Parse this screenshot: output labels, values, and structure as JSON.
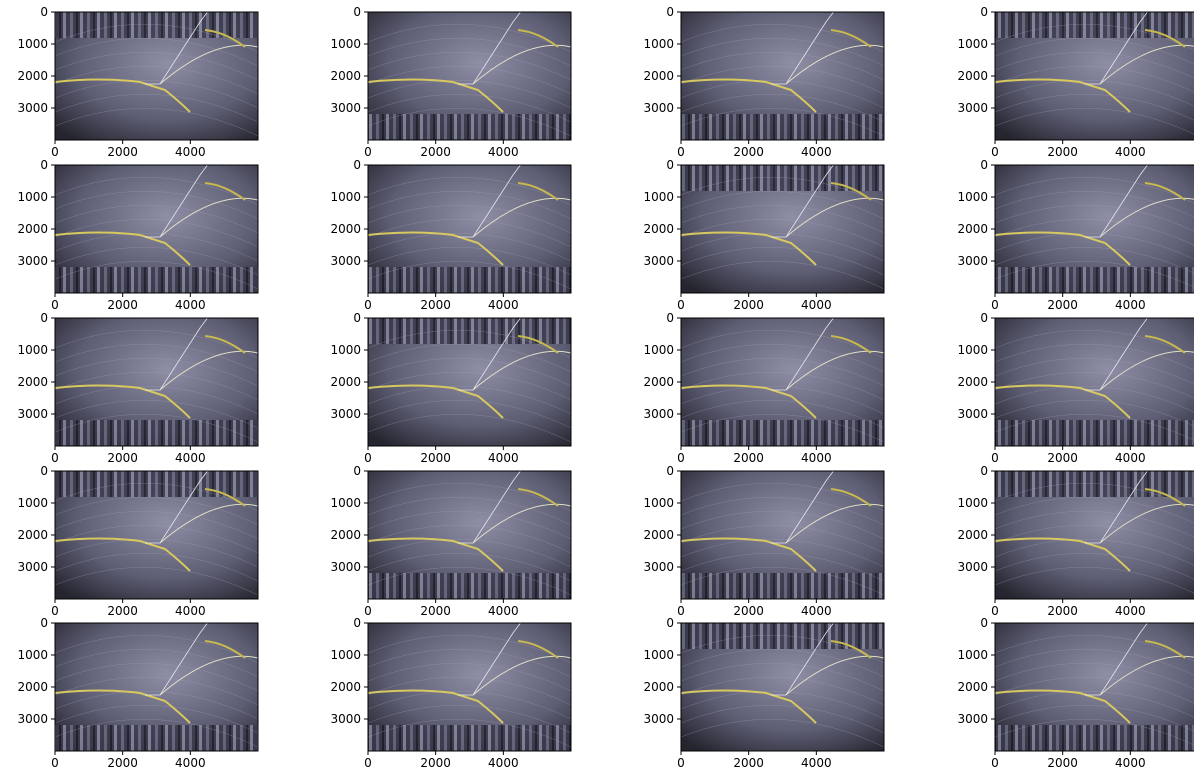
{
  "chart_data": [
    {
      "type": "image",
      "xlim": [
        0,
        6000
      ],
      "ylim": [
        4000,
        0
      ],
      "xticks": [
        0,
        2000,
        4000
      ],
      "yticks": [
        0,
        1000,
        2000,
        3000
      ]
    },
    {
      "type": "image",
      "xlim": [
        0,
        6000
      ],
      "ylim": [
        4000,
        0
      ],
      "xticks": [
        0,
        2000,
        4000
      ],
      "yticks": [
        0,
        1000,
        2000,
        3000
      ]
    },
    {
      "type": "image",
      "xlim": [
        0,
        6000
      ],
      "ylim": [
        4000,
        0
      ],
      "xticks": [
        0,
        2000,
        4000
      ],
      "yticks": [
        0,
        1000,
        2000,
        3000
      ]
    },
    {
      "type": "image",
      "xlim": [
        0,
        6000
      ],
      "ylim": [
        4000,
        0
      ],
      "xticks": [
        0,
        2000,
        4000
      ],
      "yticks": [
        0,
        1000,
        2000,
        3000
      ]
    },
    {
      "type": "image",
      "xlim": [
        0,
        6000
      ],
      "ylim": [
        4000,
        0
      ],
      "xticks": [
        0,
        2000,
        4000
      ],
      "yticks": [
        0,
        1000,
        2000,
        3000
      ]
    },
    {
      "type": "image",
      "xlim": [
        0,
        6000
      ],
      "ylim": [
        4000,
        0
      ],
      "xticks": [
        0,
        2000,
        4000
      ],
      "yticks": [
        0,
        1000,
        2000,
        3000
      ]
    },
    {
      "type": "image",
      "xlim": [
        0,
        6000
      ],
      "ylim": [
        4000,
        0
      ],
      "xticks": [
        0,
        2000,
        4000
      ],
      "yticks": [
        0,
        1000,
        2000,
        3000
      ]
    },
    {
      "type": "image",
      "xlim": [
        0,
        6000
      ],
      "ylim": [
        4000,
        0
      ],
      "xticks": [
        0,
        2000,
        4000
      ],
      "yticks": [
        0,
        1000,
        2000,
        3000
      ]
    },
    {
      "type": "image",
      "xlim": [
        0,
        6000
      ],
      "ylim": [
        4000,
        0
      ],
      "xticks": [
        0,
        2000,
        4000
      ],
      "yticks": [
        0,
        1000,
        2000,
        3000
      ]
    },
    {
      "type": "image",
      "xlim": [
        0,
        6000
      ],
      "ylim": [
        4000,
        0
      ],
      "xticks": [
        0,
        2000,
        4000
      ],
      "yticks": [
        0,
        1000,
        2000,
        3000
      ]
    },
    {
      "type": "image",
      "xlim": [
        0,
        6000
      ],
      "ylim": [
        4000,
        0
      ],
      "xticks": [
        0,
        2000,
        4000
      ],
      "yticks": [
        0,
        1000,
        2000,
        3000
      ]
    },
    {
      "type": "image",
      "xlim": [
        0,
        6000
      ],
      "ylim": [
        4000,
        0
      ],
      "xticks": [
        0,
        2000,
        4000
      ],
      "yticks": [
        0,
        1000,
        2000,
        3000
      ]
    },
    {
      "type": "image",
      "xlim": [
        0,
        6000
      ],
      "ylim": [
        4000,
        0
      ],
      "xticks": [
        0,
        2000,
        4000
      ],
      "yticks": [
        0,
        1000,
        2000,
        3000
      ]
    },
    {
      "type": "image",
      "xlim": [
        0,
        6000
      ],
      "ylim": [
        4000,
        0
      ],
      "xticks": [
        0,
        2000,
        4000
      ],
      "yticks": [
        0,
        1000,
        2000,
        3000
      ]
    },
    {
      "type": "image",
      "xlim": [
        0,
        6000
      ],
      "ylim": [
        4000,
        0
      ],
      "xticks": [
        0,
        2000,
        4000
      ],
      "yticks": [
        0,
        1000,
        2000,
        3000
      ]
    },
    {
      "type": "image",
      "xlim": [
        0,
        6000
      ],
      "ylim": [
        4000,
        0
      ],
      "xticks": [
        0,
        2000,
        4000
      ],
      "yticks": [
        0,
        1000,
        2000,
        3000
      ]
    },
    {
      "type": "image",
      "xlim": [
        0,
        6000
      ],
      "ylim": [
        4000,
        0
      ],
      "xticks": [
        0,
        2000,
        4000
      ],
      "yticks": [
        0,
        1000,
        2000,
        3000
      ]
    },
    {
      "type": "image",
      "xlim": [
        0,
        6000
      ],
      "ylim": [
        4000,
        0
      ],
      "xticks": [
        0,
        2000,
        4000
      ],
      "yticks": [
        0,
        1000,
        2000,
        3000
      ]
    },
    {
      "type": "image",
      "xlim": [
        0,
        6000
      ],
      "ylim": [
        4000,
        0
      ],
      "xticks": [
        0,
        2000,
        4000
      ],
      "yticks": [
        0,
        1000,
        2000,
        3000
      ]
    },
    {
      "type": "image",
      "xlim": [
        0,
        6000
      ],
      "ylim": [
        4000,
        0
      ],
      "xticks": [
        0,
        2000,
        4000
      ],
      "yticks": [
        0,
        1000,
        2000,
        3000
      ]
    }
  ]
}
